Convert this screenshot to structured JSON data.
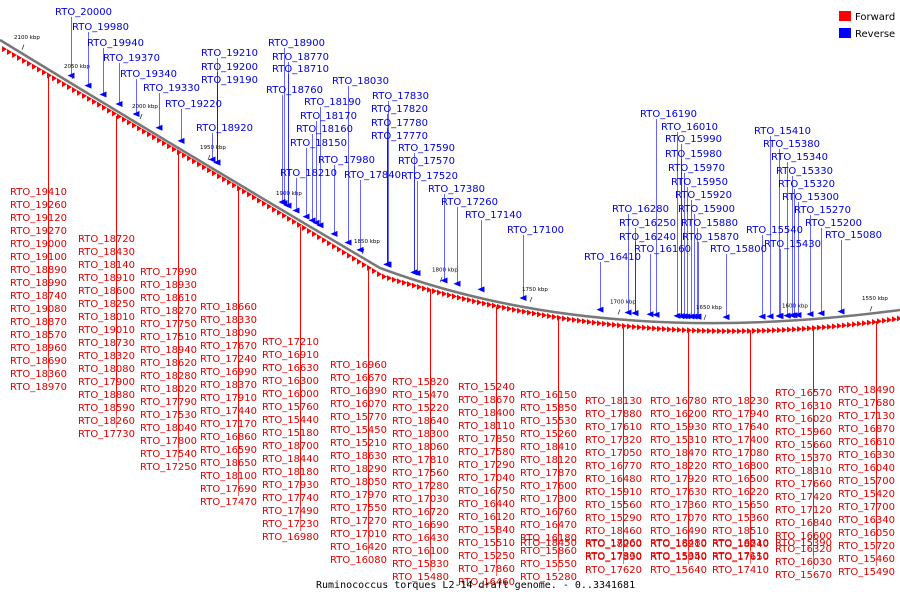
{
  "caption": "Ruminococcus torques L2-14 draft genome. - 0..3341681",
  "legend": [
    {
      "label": "Forward",
      "color": "#ff0000"
    },
    {
      "label": "Reverse",
      "color": "#0000ff"
    }
  ],
  "colors": {
    "forward_text": "#dd0000",
    "reverse_text": "#0000dd",
    "backbone": "#777777"
  },
  "ticks": [
    "2100 kbp",
    "2050 kbp",
    "2000 kbp",
    "1950 kbp",
    "1900 kbp",
    "1850 kbp",
    "1800 kbp",
    "1750 kbp",
    "1700 kbp",
    "1650 kbp",
    "1600 kbp",
    "1550 kbp"
  ],
  "reverse_labels": [
    "RTO_20000",
    "RTO_19980",
    "RTO_19940",
    "RTO_19370",
    "RTO_19340",
    "RTO_19330",
    "RTO_19220",
    "RTO_19210",
    "RTO_19200",
    "RTO_19190",
    "RTO_18920",
    "RTO_18900",
    "RTO_18770",
    "RTO_18710",
    "RTO_18760",
    "RTO_18030",
    "RTO_17830",
    "RTO_18190",
    "RTO_17820",
    "RTO_18170",
    "RTO_17780",
    "RTO_18160",
    "RTO_17770",
    "RTO_18150",
    "RTO_17590",
    "RTO_17980",
    "RTO_17570",
    "RTO_18210",
    "RTO_17840",
    "RTO_17520",
    "RTO_17380",
    "RTO_17260",
    "RTO_17140",
    "RTO_17100",
    "RTO_16190",
    "RTO_16010",
    "RTO_15990",
    "RTO_15980",
    "RTO_15970",
    "RTO_15950",
    "RTO_15920",
    "RTO_16280",
    "RTO_15900",
    "RTO_16250",
    "RTO_15880",
    "RTO_16240",
    "RTO_15870",
    "RTO_16160",
    "RTO_15800",
    "RTO_16410",
    "RTO_15410",
    "RTO_15380",
    "RTO_15340",
    "RTO_15330",
    "RTO_15320",
    "RTO_15300",
    "RTO_15270",
    "RTO_15540",
    "RTO_15200",
    "RTO_15430",
    "RTO_15080"
  ],
  "forward_labels": [
    "RTO_19410",
    "RTO_19260",
    "RTO_19120",
    "RTO_19270",
    "RTO_19000",
    "RTO_19100",
    "RTO_18890",
    "RTO_18990",
    "RTO_18740",
    "RTO_19080",
    "RTO_18870",
    "RTO_18570",
    "RTO_18960",
    "RTO_18690",
    "RTO_18360",
    "RTO_18970",
    "RTO_18720",
    "RTO_18430",
    "RTO_18140",
    "RTO_18910",
    "RTO_18600",
    "RTO_18250",
    "RTO_18010",
    "RTO_19010",
    "RTO_18730",
    "RTO_18320",
    "RTO_18080",
    "RTO_17900",
    "RTO_18880",
    "RTO_18590",
    "RTO_18260",
    "RTO_17730",
    "RTO_17990",
    "RTO_18930",
    "RTO_18610",
    "RTO_18270",
    "RTO_17750",
    "RTO_17510",
    "RTO_18940",
    "RTO_18620",
    "RTO_18280",
    "RTO_18020",
    "RTO_17790",
    "RTO_17530",
    "RTO_18040",
    "RTO_17800",
    "RTO_17540",
    "RTO_17250",
    "RTO_18660",
    "RTO_18330",
    "RTO_18090",
    "RTO_17670",
    "RTO_17240",
    "RTO_16990",
    "RTO_18370",
    "RTO_17910",
    "RTO_17440",
    "RTO_17170",
    "RTO_16860",
    "RTO_16590",
    "RTO_18650",
    "RTO_18100",
    "RTO_17690",
    "RTO_17470",
    "RTO_17210",
    "RTO_16910",
    "RTO_16630",
    "RTO_16300",
    "RTO_16000",
    "RTO_15760",
    "RTO_15440",
    "RTO_15180",
    "RTO_18700",
    "RTO_18440",
    "RTO_18180",
    "RTO_17930",
    "RTO_17740",
    "RTO_17490",
    "RTO_17230",
    "RTO_16980",
    "RTO_16960",
    "RTO_16670",
    "RTO_16390",
    "RTO_16070",
    "RTO_15770",
    "RTO_15450",
    "RTO_15210",
    "RTO_18630",
    "RTO_18290",
    "RTO_18050",
    "RTO_17970",
    "RTO_17550",
    "RTO_17270",
    "RTO_17010",
    "RTO_16420",
    "RTO_16080",
    "RTO_15820",
    "RTO_15470",
    "RTO_15220",
    "RTO_18640",
    "RTO_18300",
    "RTO_18060",
    "RTO_17810",
    "RTO_17560",
    "RTO_17280",
    "RTO_17030",
    "RTO_16720",
    "RTO_16690",
    "RTO_16430",
    "RTO_16100",
    "RTO_15830",
    "RTO_15480",
    "RTO_15240",
    "RTO_18670",
    "RTO_18400",
    "RTO_18110",
    "RTO_17850",
    "RTO_17580",
    "RTO_17290",
    "RTO_17040",
    "RTO_16750",
    "RTO_16440",
    "RTO_16120",
    "RTO_15840",
    "RTO_15510",
    "RTO_15250",
    "RTO_17860",
    "RTO_16460",
    "RTO_16150",
    "RTO_15850",
    "RTO_15530",
    "RTO_15260",
    "RTO_18410",
    "RTO_18120",
    "RTO_17870",
    "RTO_17600",
    "RTO_17300",
    "RTO_16760",
    "RTO_16470",
    "RTO_16180",
    "RTO_15860",
    "RTO_15550",
    "RTO_15280",
    "RTO_18450",
    "RTO_18130",
    "RTO_17880",
    "RTO_17610",
    "RTO_17320",
    "RTO_17050",
    "RTO_16770",
    "RTO_16480",
    "RTO_15910",
    "RTO_15560",
    "RTO_15290",
    "RTO_18460",
    "RTO_18200",
    "RTO_17890",
    "RTO_17620",
    "RTO_17330",
    "RTO_17060",
    "RTO_16780",
    "RTO_16200",
    "RTO_15930",
    "RTO_15310",
    "RTO_18470",
    "RTO_18220",
    "RTO_17920",
    "RTO_17630",
    "RTO_17360",
    "RTO_17070",
    "RTO_16490",
    "RTO_16210",
    "RTO_15940",
    "RTO_15640",
    "RTO_15350",
    "RTO_18480",
    "RTO_18230",
    "RTO_17940",
    "RTO_17640",
    "RTO_17400",
    "RTO_17080",
    "RTO_16800",
    "RTO_16500",
    "RTO_16220",
    "RTO_15650",
    "RTO_15360",
    "RTO_18510",
    "RTO_18240",
    "RTO_17650",
    "RTO_17410",
    "RTO_17110",
    "RTO_16810",
    "RTO_16570",
    "RTO_16310",
    "RTO_16020",
    "RTO_15960",
    "RTO_15660",
    "RTO_15370",
    "RTO_18310",
    "RTO_17660",
    "RTO_17420",
    "RTO_17120",
    "RTO_16840",
    "RTO_16600",
    "RTO_16320",
    "RTO_16030",
    "RTO_15670",
    "RTO_15390",
    "RTO_18490",
    "RTO_17680",
    "RTO_17130",
    "RTO_16870",
    "RTO_16610",
    "RTO_16330",
    "RTO_16040",
    "RTO_15700",
    "RTO_15420",
    "RTO_17700",
    "RTO_16340",
    "RTO_16050",
    "RTO_15720",
    "RTO_15460",
    "RTO_15490"
  ]
}
